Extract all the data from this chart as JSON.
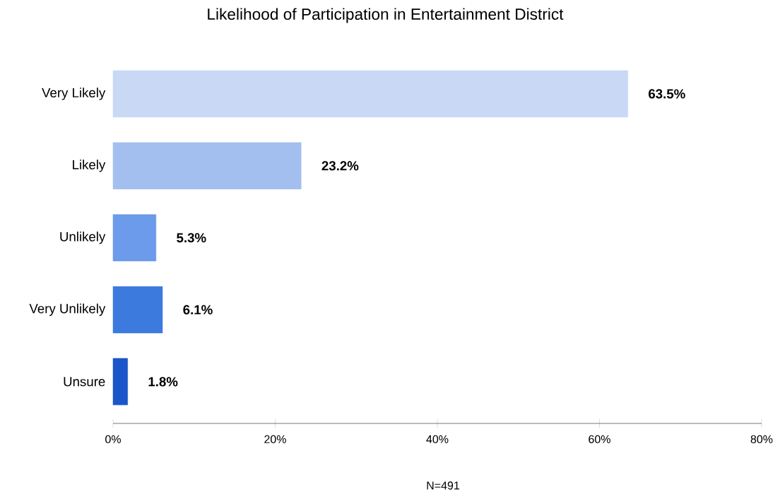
{
  "chart_data": {
    "type": "bar",
    "orientation": "horizontal",
    "title": "Likelihood of Participation in Entertainment District",
    "categories": [
      "Very Likely",
      "Likely",
      "Unlikely",
      "Very Unlikely",
      "Unsure"
    ],
    "values": [
      63.5,
      23.2,
      5.3,
      6.1,
      1.8
    ],
    "colors": [
      "#c9d8f5",
      "#a3bff0",
      "#6d9beb",
      "#3d7ade",
      "#1a56c9"
    ],
    "value_labels": [
      "63.5%",
      "23.2%",
      "5.3%",
      "6.1%",
      "1.8%"
    ],
    "xlim": [
      0,
      80
    ],
    "xticks": [
      {
        "value": 0,
        "label": "0%"
      },
      {
        "value": 20,
        "label": "20%"
      },
      {
        "value": 40,
        "label": "40%"
      },
      {
        "value": 60,
        "label": "60%"
      },
      {
        "value": 80,
        "label": "80%"
      }
    ],
    "grid": false,
    "annotations": [
      "N=491"
    ]
  }
}
